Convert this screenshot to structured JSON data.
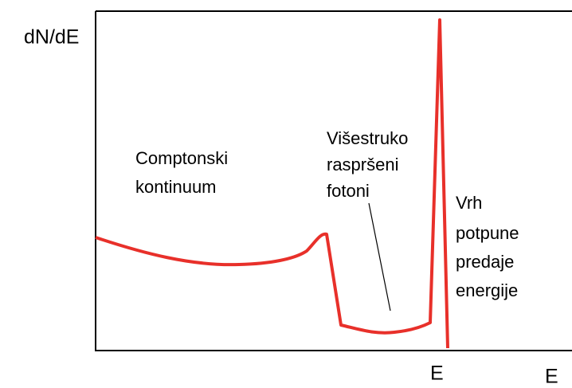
{
  "axis": {
    "y_label": "dN/dE",
    "x_label": "E",
    "peak_label": "E"
  },
  "annotations": [
    {
      "lines": [
        "Comptonski",
        "kontinuum"
      ]
    },
    {
      "lines": [
        "Višestruko",
        "raspršeni",
        "fotoni"
      ]
    },
    {
      "lines": [
        "Vrh",
        "potpune",
        "predaje",
        "energije"
      ]
    }
  ]
}
